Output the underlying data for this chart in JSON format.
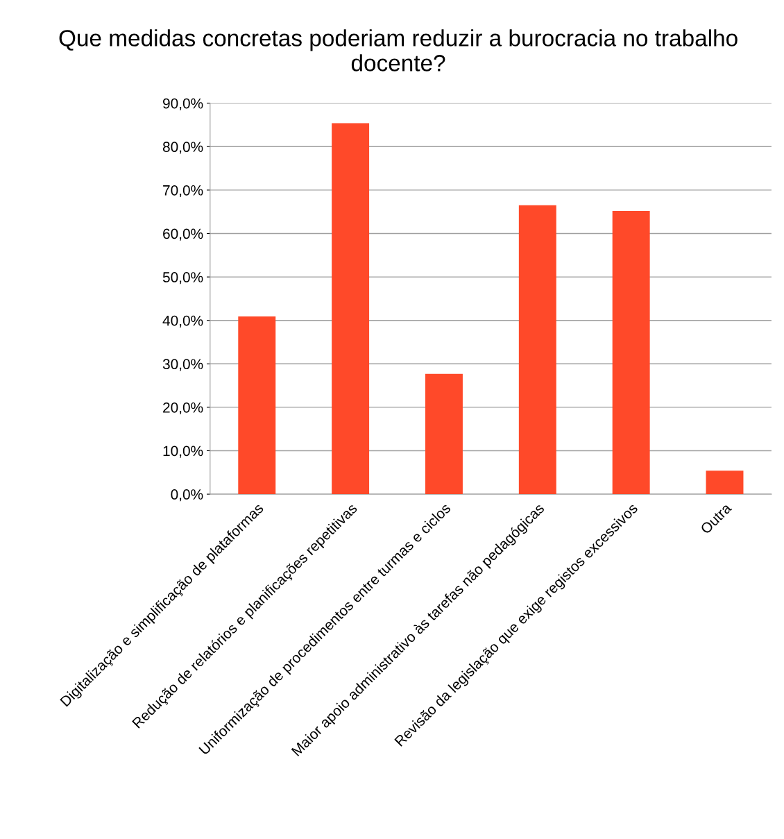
{
  "chart_data": {
    "type": "bar",
    "title": "Que medidas concretas poderiam reduzir a burocracia no trabalho docente?",
    "categories": [
      "Digitalização e simplificação de plataformas",
      "Redução de relatórios e planificações repetitivas",
      "Uniformização de procedimentos entre turmas e ciclos",
      "Maior apoio administrativo às tarefas não pedagógicas",
      "Revisão da legislação que exige registos excessivos",
      "Outra"
    ],
    "values": [
      40.9,
      85.4,
      27.7,
      66.5,
      65.2,
      5.4
    ],
    "color": "#ff4929",
    "ylim": [
      0,
      90
    ],
    "yticks": [
      {
        "value": 0,
        "label": "0,0%"
      },
      {
        "value": 10,
        "label": "10,0%"
      },
      {
        "value": 20,
        "label": "20,0%"
      },
      {
        "value": 30,
        "label": "30,0%"
      },
      {
        "value": 40,
        "label": "40,0%"
      },
      {
        "value": 50,
        "label": "50,0%"
      },
      {
        "value": 60,
        "label": "60,0%"
      },
      {
        "value": 70,
        "label": "70,0%"
      },
      {
        "value": 80,
        "label": "80,0%"
      },
      {
        "value": 90,
        "label": "90,0%"
      }
    ],
    "grid": "y",
    "legend": false
  }
}
